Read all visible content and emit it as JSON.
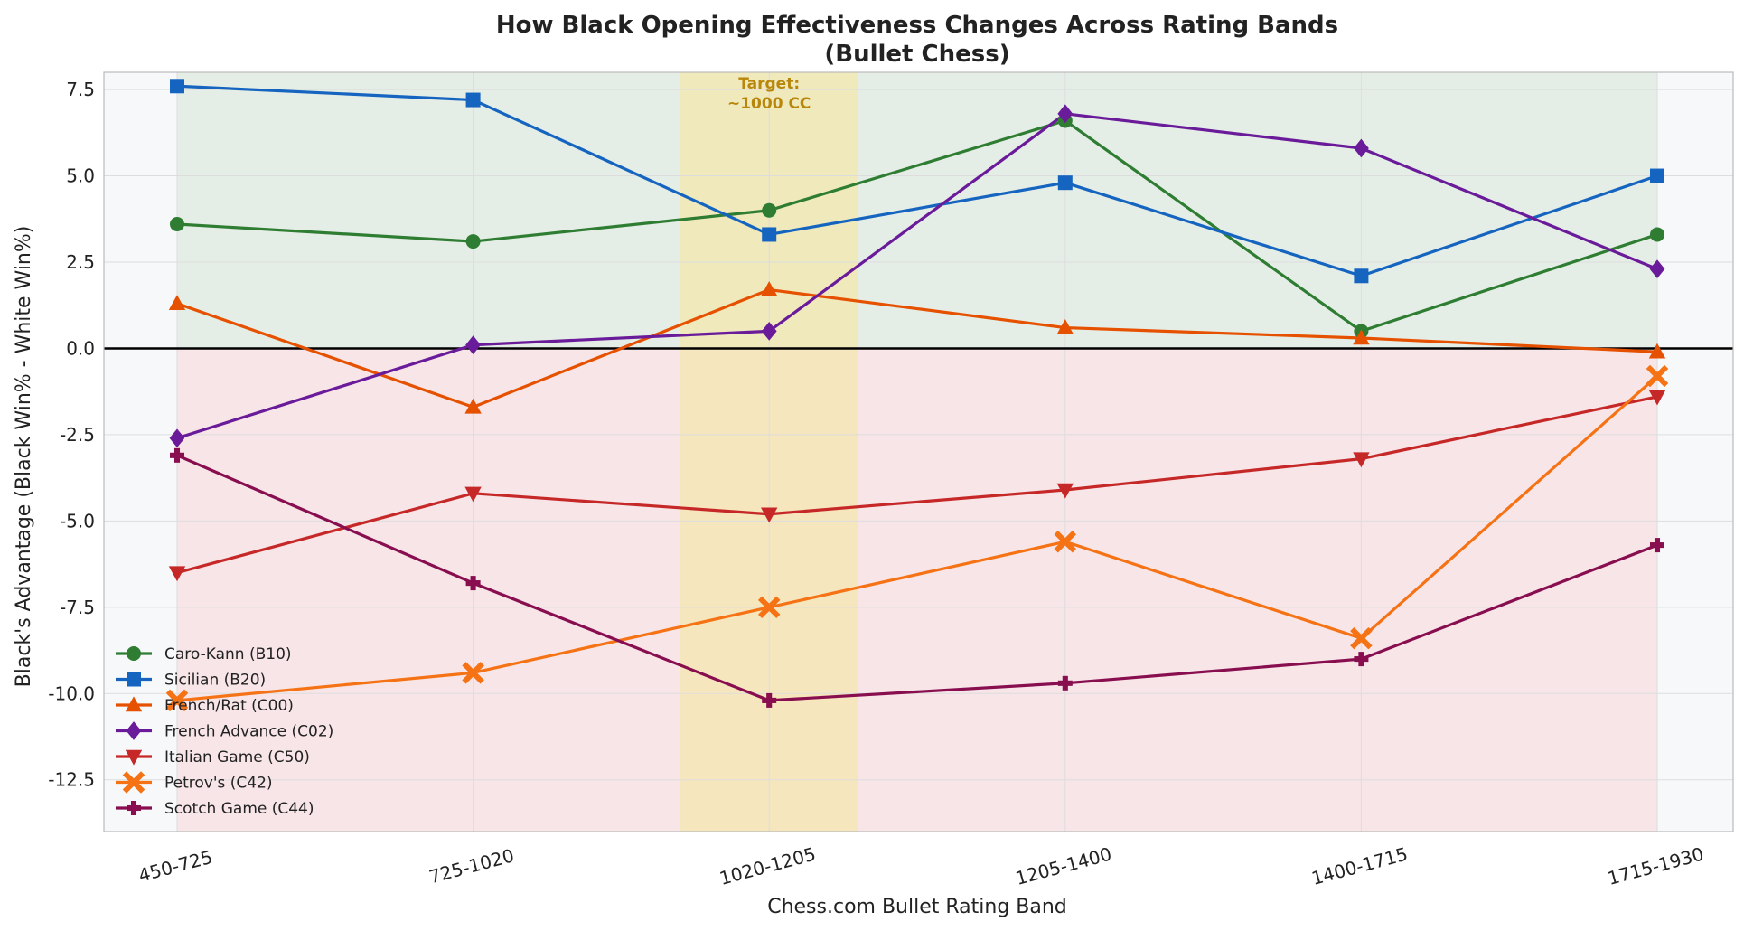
{
  "chart_data": {
    "type": "line",
    "title": "How Black Opening Effectiveness Changes Across Rating Bands",
    "subtitle": "(Bullet Chess)",
    "xlabel": "Chess.com Bullet Rating Band",
    "ylabel": "Black's Advantage (Black Win% - White Win%)",
    "categories": [
      "450-725",
      "725-1020",
      "1020-1205",
      "1205-1400",
      "1400-1715",
      "1715-1930"
    ],
    "ylim": [
      -14,
      8
    ],
    "yticks": [
      7.5,
      5.0,
      2.5,
      0.0,
      -2.5,
      -5.0,
      -7.5,
      -10.0,
      -12.5
    ],
    "grid": true,
    "legend_position": "lower-left",
    "zero_line": true,
    "regions": {
      "positive_color": "#d9e8d9",
      "negative_color": "#f6d9dc",
      "background": "#f7f8fa"
    },
    "highlight": {
      "label_line1": "Target:",
      "label_line2": "~1000 CC",
      "from_category_index": 1.7,
      "to_category_index": 2.3,
      "color": "#f5e6a0",
      "text_color": "#b8860b"
    },
    "series": [
      {
        "name": "Caro-Kann (B10)",
        "color": "#2e7d32",
        "marker": "circle",
        "values": [
          3.6,
          3.1,
          4.0,
          6.6,
          0.5,
          3.3
        ]
      },
      {
        "name": "Sicilian (B20)",
        "color": "#1565c0",
        "marker": "square",
        "values": [
          7.6,
          7.2,
          3.3,
          4.8,
          2.1,
          5.0
        ]
      },
      {
        "name": "French/Rat (C00)",
        "color": "#e65100",
        "marker": "triangle-up",
        "values": [
          1.3,
          -1.7,
          1.7,
          0.6,
          0.3,
          -0.1
        ]
      },
      {
        "name": "French Advance (C02)",
        "color": "#6a1b9a",
        "marker": "diamond",
        "values": [
          -2.6,
          0.1,
          0.5,
          6.8,
          5.8,
          2.3
        ]
      },
      {
        "name": "Italian Game (C50)",
        "color": "#c62828",
        "marker": "triangle-down",
        "values": [
          -6.5,
          -4.2,
          -4.8,
          -4.1,
          -3.2,
          -1.4
        ]
      },
      {
        "name": "Petrov's (C42)",
        "color": "#f57315",
        "marker": "x",
        "values": [
          -10.2,
          -9.4,
          -7.5,
          -5.6,
          -8.4,
          -0.8
        ]
      },
      {
        "name": "Scotch Game (C44)",
        "color": "#880e4f",
        "marker": "plus",
        "values": [
          -3.1,
          -6.8,
          -10.2,
          -9.7,
          -9.0,
          -5.7
        ]
      }
    ]
  }
}
